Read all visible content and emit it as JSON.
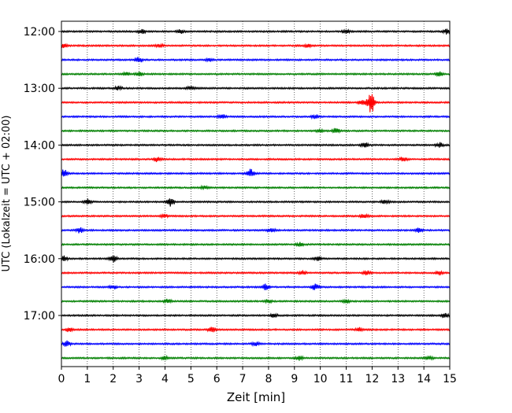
{
  "chart_data": {
    "type": "line",
    "title": "",
    "xlabel": "Zeit  [min]",
    "ylabel": "UTC (Lokalzeit = UTC + 02:00)",
    "xlim": [
      0,
      15
    ],
    "x_ticks": [
      "0",
      "1",
      "2",
      "3",
      "4",
      "5",
      "6",
      "7",
      "8",
      "9",
      "10",
      "11",
      "12",
      "13",
      "14",
      "15"
    ],
    "y_ticks": [
      "12:00",
      "13:00",
      "14:00",
      "15:00",
      "16:00",
      "17:00"
    ],
    "grid": "vertical dotted",
    "trace_interval_min": 15,
    "trace_colors": [
      "#000000",
      "#ff0000",
      "#0000ff",
      "#008000"
    ],
    "traces": [
      {
        "start": "12:00",
        "color": "#000000",
        "events": [
          {
            "t": 3.1,
            "amp": 0.35
          },
          {
            "t": 4.6,
            "amp": 0.3
          },
          {
            "t": 11.0,
            "amp": 0.3
          },
          {
            "t": 14.9,
            "amp": 0.4
          }
        ]
      },
      {
        "start": "12:15",
        "color": "#ff0000",
        "events": [
          {
            "t": 0.1,
            "amp": 0.35
          },
          {
            "t": 3.8,
            "amp": 0.3
          },
          {
            "t": 9.5,
            "amp": 0.25
          }
        ]
      },
      {
        "start": "12:30",
        "color": "#0000ff",
        "events": [
          {
            "t": 3.0,
            "amp": 0.5
          },
          {
            "t": 5.7,
            "amp": 0.25
          }
        ]
      },
      {
        "start": "12:45",
        "color": "#008000",
        "events": [
          {
            "t": 2.5,
            "amp": 0.35
          },
          {
            "t": 3.0,
            "amp": 0.3
          },
          {
            "t": 14.6,
            "amp": 0.35
          }
        ]
      },
      {
        "start": "13:00",
        "color": "#000000",
        "events": [
          {
            "t": 2.2,
            "amp": 0.3
          },
          {
            "t": 5.0,
            "amp": 0.3
          }
        ]
      },
      {
        "start": "13:15",
        "color": "#ff0000",
        "events": [
          {
            "t": 11.6,
            "amp": 0.4
          },
          {
            "t": 11.9,
            "amp": 0.9
          },
          {
            "t": 12.0,
            "amp": 1.6
          }
        ]
      },
      {
        "start": "13:30",
        "color": "#0000ff",
        "events": [
          {
            "t": 6.2,
            "amp": 0.35
          },
          {
            "t": 9.8,
            "amp": 0.3
          }
        ]
      },
      {
        "start": "13:45",
        "color": "#008000",
        "events": [
          {
            "t": 10.6,
            "amp": 0.45
          },
          {
            "t": 10.0,
            "amp": 0.3
          }
        ]
      },
      {
        "start": "14:00",
        "color": "#000000",
        "events": [
          {
            "t": 11.7,
            "amp": 0.45
          },
          {
            "t": 14.6,
            "amp": 0.4
          }
        ]
      },
      {
        "start": "14:15",
        "color": "#ff0000",
        "events": [
          {
            "t": 3.7,
            "amp": 0.4
          },
          {
            "t": 13.2,
            "amp": 0.4
          }
        ]
      },
      {
        "start": "14:30",
        "color": "#0000ff",
        "events": [
          {
            "t": 0.1,
            "amp": 0.6
          },
          {
            "t": 7.3,
            "amp": 0.7
          }
        ]
      },
      {
        "start": "14:45",
        "color": "#008000",
        "events": [
          {
            "t": 5.5,
            "amp": 0.25
          }
        ]
      },
      {
        "start": "15:00",
        "color": "#000000",
        "events": [
          {
            "t": 1.0,
            "amp": 0.45
          },
          {
            "t": 4.2,
            "amp": 0.75
          },
          {
            "t": 12.5,
            "amp": 0.4
          }
        ]
      },
      {
        "start": "15:15",
        "color": "#ff0000",
        "events": [
          {
            "t": 11.7,
            "amp": 0.35
          },
          {
            "t": 4.0,
            "amp": 0.25
          }
        ]
      },
      {
        "start": "15:30",
        "color": "#0000ff",
        "events": [
          {
            "t": 0.7,
            "amp": 0.45
          },
          {
            "t": 8.1,
            "amp": 0.35
          },
          {
            "t": 13.8,
            "amp": 0.35
          }
        ]
      },
      {
        "start": "15:45",
        "color": "#008000",
        "events": [
          {
            "t": 9.2,
            "amp": 0.3
          }
        ]
      },
      {
        "start": "16:00",
        "color": "#000000",
        "events": [
          {
            "t": 0.1,
            "amp": 0.4
          },
          {
            "t": 2.0,
            "amp": 0.55
          },
          {
            "t": 9.9,
            "amp": 0.3
          }
        ]
      },
      {
        "start": "16:15",
        "color": "#ff0000",
        "events": [
          {
            "t": 9.3,
            "amp": 0.35
          },
          {
            "t": 11.8,
            "amp": 0.35
          },
          {
            "t": 14.6,
            "amp": 0.3
          }
        ]
      },
      {
        "start": "16:30",
        "color": "#0000ff",
        "events": [
          {
            "t": 2.0,
            "amp": 0.35
          },
          {
            "t": 7.9,
            "amp": 0.5
          },
          {
            "t": 9.8,
            "amp": 0.5
          }
        ]
      },
      {
        "start": "16:45",
        "color": "#008000",
        "events": [
          {
            "t": 4.1,
            "amp": 0.3
          },
          {
            "t": 8.0,
            "amp": 0.3
          },
          {
            "t": 11.0,
            "amp": 0.3
          }
        ]
      },
      {
        "start": "17:00",
        "color": "#000000",
        "events": [
          {
            "t": 8.2,
            "amp": 0.35
          },
          {
            "t": 14.8,
            "amp": 0.3
          }
        ]
      },
      {
        "start": "17:15",
        "color": "#ff0000",
        "events": [
          {
            "t": 0.3,
            "amp": 0.35
          },
          {
            "t": 5.8,
            "amp": 0.4
          },
          {
            "t": 11.5,
            "amp": 0.3
          }
        ]
      },
      {
        "start": "17:30",
        "color": "#0000ff",
        "events": [
          {
            "t": 0.2,
            "amp": 0.45
          },
          {
            "t": 7.5,
            "amp": 0.3
          }
        ]
      },
      {
        "start": "17:45",
        "color": "#008000",
        "events": [
          {
            "t": 9.2,
            "amp": 0.45
          },
          {
            "t": 4.0,
            "amp": 0.25
          },
          {
            "t": 14.2,
            "amp": 0.3
          }
        ]
      }
    ]
  }
}
